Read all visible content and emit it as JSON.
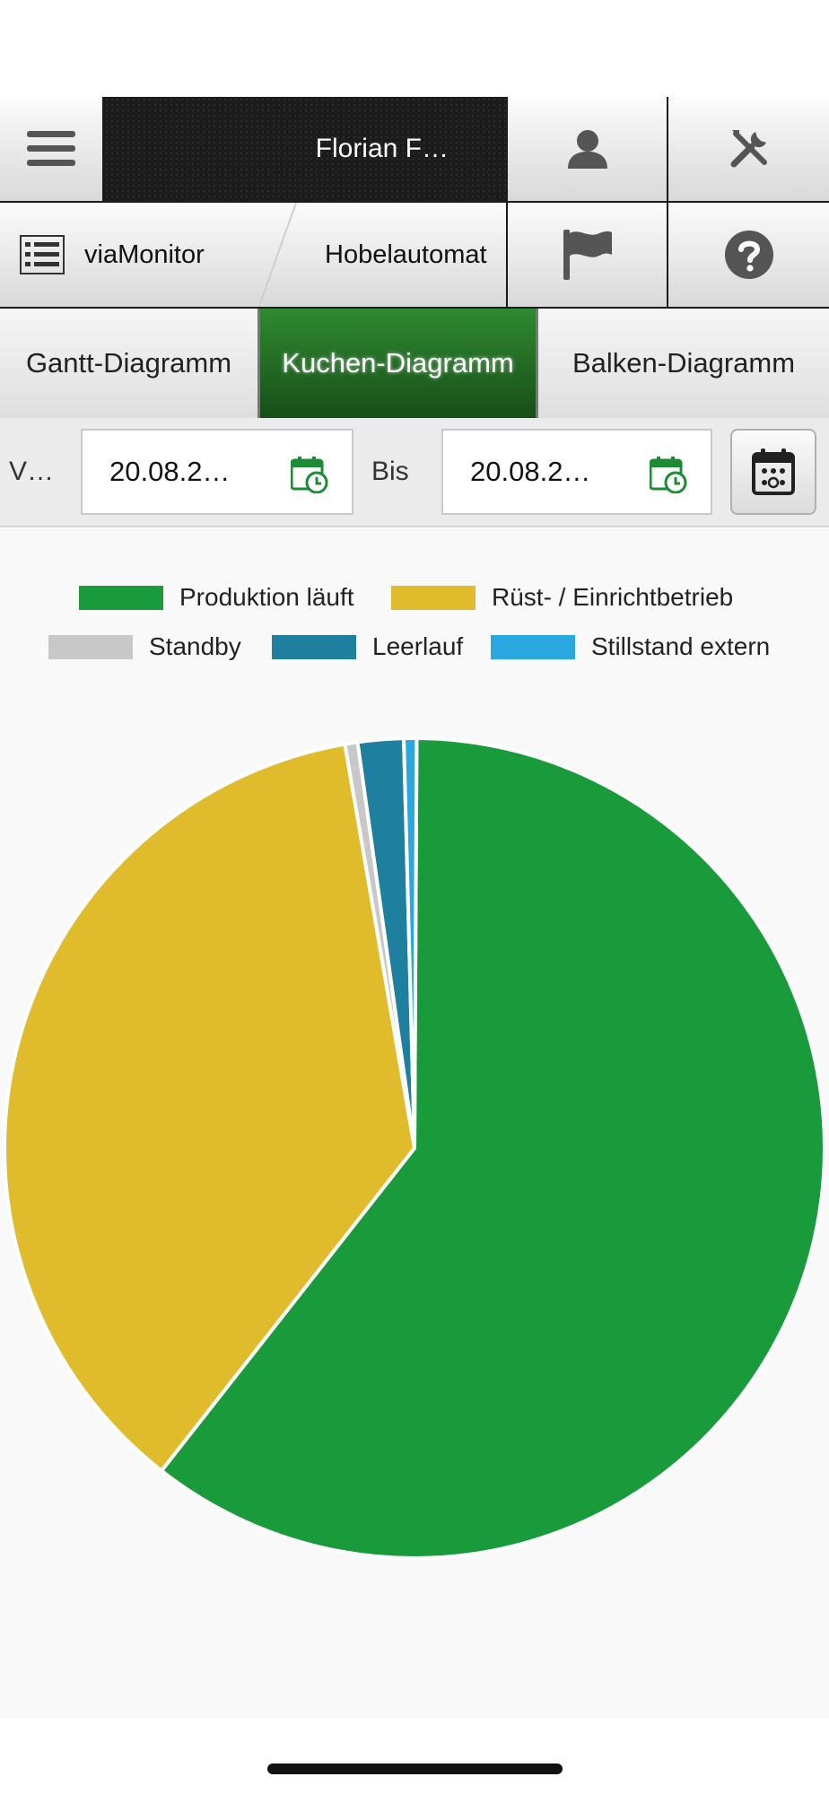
{
  "header": {
    "user_name": "Florian F…",
    "icons": {
      "menu": "hamburger-menu-icon",
      "user": "user-icon",
      "tools": "tools-icon",
      "flag": "flag-icon",
      "help": "help-icon"
    }
  },
  "breadcrumb": {
    "app": "viaMonitor",
    "device": "Hobelautomat"
  },
  "tabs": [
    {
      "label": "Gantt-Diagramm",
      "active": false
    },
    {
      "label": "Kuchen-Diagramm",
      "active": true
    },
    {
      "label": "Balken-Diagramm",
      "active": false
    }
  ],
  "date_range": {
    "from_label": "V…",
    "from_value": "20.08.2…",
    "to_label": "Bis",
    "to_value": "20.08.2…"
  },
  "chart_data": {
    "type": "pie",
    "legend_position": "top",
    "series": [
      {
        "name": "Produktion läuft",
        "value": 60.5,
        "color": "#199b3c"
      },
      {
        "name": "Rüst- / Einrichtbetrieb",
        "value": 36.7,
        "color": "#e0bb2b"
      },
      {
        "name": "Standby",
        "value": 0.5,
        "color": "#c8c8c8"
      },
      {
        "name": "Leerlauf",
        "value": 1.8,
        "color": "#1f7f9e"
      },
      {
        "name": "Stillstand extern",
        "value": 0.5,
        "color": "#29a8e0"
      }
    ]
  }
}
